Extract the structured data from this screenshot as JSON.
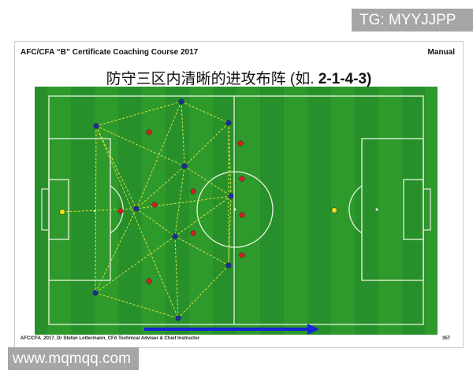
{
  "watermark_top": "TG: MYYJJPP",
  "watermark_bottom": "www.mqmqq.com",
  "header": {
    "left": "AFC/CFA “B” Certificate Coaching Course 2017",
    "right": "Manual"
  },
  "title": {
    "text": "防守三区内清晰的进攻布阵 (如. ",
    "bold": "2-1-4-3)"
  },
  "footer": {
    "left": "AFC/CFA_2017_Dr Stefan Lottermann_CFA Technical Adviser & Chief Instructor",
    "page": "357"
  },
  "colors": {
    "pitch": "#2f9a2c",
    "attack": "#1b2f9e",
    "defence": "#d42020",
    "goalkeeper": "#f2e21c",
    "pass_line": "#e8e840",
    "arrow": "#1424d6"
  }
}
